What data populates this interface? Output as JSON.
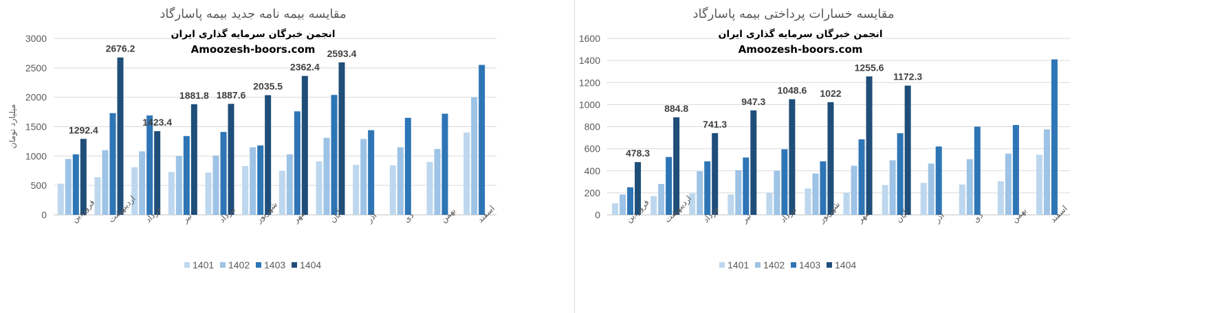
{
  "chart_data": [
    {
      "type": "bar",
      "title": "مقایسه بیمه نامه جدید بیمه پاسارگاد",
      "watermark": [
        "انجمن خبرگان سرمایه گذاری ایران",
        "Amoozesh-boors.com"
      ],
      "ylabel": "میلیارد تومان",
      "xlabel": "",
      "ylim": [
        0,
        3000
      ],
      "yticks": [
        0,
        500,
        1000,
        1500,
        2000,
        2500,
        3000
      ],
      "grid": true,
      "legend": "bottom",
      "categories": [
        "فروردین",
        "اردیبهشت",
        "خرداد",
        "تیر",
        "مرداد",
        "شهریور",
        "مهر",
        "آبان",
        "آذر",
        "دی",
        "بهمن",
        "اسفند"
      ],
      "series": [
        {
          "name": "1401",
          "color": "#bdd7ee",
          "values": [
            530,
            640,
            810,
            730,
            720,
            830,
            750,
            910,
            850,
            840,
            900,
            1400
          ]
        },
        {
          "name": "1402",
          "color": "#9dc3e6",
          "values": [
            950,
            1100,
            1080,
            1000,
            1010,
            1150,
            1030,
            1310,
            1290,
            1150,
            1120,
            2000
          ]
        },
        {
          "name": "1403",
          "color": "#2e75b6",
          "values": [
            1030,
            1730,
            1690,
            1340,
            1410,
            1180,
            1760,
            2040,
            1440,
            1650,
            1720,
            2550
          ]
        },
        {
          "name": "1404",
          "color": "#1f4e79",
          "values": [
            1292.4,
            2676.2,
            1423.4,
            1881.8,
            1887.6,
            2035.5,
            2362.4,
            2593.4,
            null,
            null,
            null,
            null
          ]
        }
      ],
      "data_labels": [
        {
          "category": "فروردین",
          "series": "1404",
          "text": "1292.4"
        },
        {
          "category": "اردیبهشت",
          "series": "1404",
          "text": "2676.2"
        },
        {
          "category": "خرداد",
          "series": "1404",
          "text": "1423.4"
        },
        {
          "category": "تیر",
          "series": "1404",
          "text": "1881.8"
        },
        {
          "category": "مرداد",
          "series": "1404",
          "text": "1887.6"
        },
        {
          "category": "شهریور",
          "series": "1404",
          "text": "2035.5"
        },
        {
          "category": "مهر",
          "series": "1404",
          "text": "2362.4"
        },
        {
          "category": "آبان",
          "series": "1404",
          "text": "2593.4"
        }
      ]
    },
    {
      "type": "bar",
      "title": "مقایسه خسارات پرداختی بیمه پاسارگاد",
      "watermark": [
        "انجمن خبرگان سرمایه گذاری ایران",
        "Amoozesh-boors.com"
      ],
      "ylabel": "",
      "xlabel": "",
      "ylim": [
        0,
        1600
      ],
      "yticks": [
        0,
        200,
        400,
        600,
        800,
        1000,
        1200,
        1400,
        1600
      ],
      "grid": true,
      "legend": "bottom",
      "categories": [
        "فروردین",
        "اردیبهشت",
        "خرداد",
        "تیر",
        "مرداد",
        "شهریور",
        "مهر",
        "آبان",
        "آذر",
        "دی",
        "بهمن",
        "اسفند"
      ],
      "series": [
        {
          "name": "1401",
          "color": "#bdd7ee",
          "values": [
            105,
            170,
            195,
            185,
            200,
            240,
            200,
            270,
            290,
            275,
            305,
            545
          ]
        },
        {
          "name": "1402",
          "color": "#9dc3e6",
          "values": [
            185,
            280,
            395,
            405,
            400,
            375,
            445,
            495,
            465,
            505,
            555,
            775
          ]
        },
        {
          "name": "1403",
          "color": "#2e75b6",
          "values": [
            250,
            525,
            485,
            520,
            595,
            485,
            685,
            740,
            620,
            800,
            815,
            1410
          ]
        },
        {
          "name": "1404",
          "color": "#1f4e79",
          "values": [
            478.3,
            884.8,
            741.3,
            947.3,
            1048.6,
            1022,
            1255.6,
            1172.3,
            null,
            null,
            null,
            null
          ]
        }
      ],
      "data_labels": [
        {
          "category": "فروردین",
          "series": "1404",
          "text": "478.3"
        },
        {
          "category": "اردیبهشت",
          "series": "1404",
          "text": "884.8"
        },
        {
          "category": "خرداد",
          "series": "1404",
          "text": "741.3"
        },
        {
          "category": "تیر",
          "series": "1404",
          "text": "947.3"
        },
        {
          "category": "مرداد",
          "series": "1404",
          "text": "1048.6"
        },
        {
          "category": "شهریور",
          "series": "1404",
          "text": "1022"
        },
        {
          "category": "مهر",
          "series": "1404",
          "text": "1255.6"
        },
        {
          "category": "آبان",
          "series": "1404",
          "text": "1172.3"
        }
      ]
    }
  ]
}
